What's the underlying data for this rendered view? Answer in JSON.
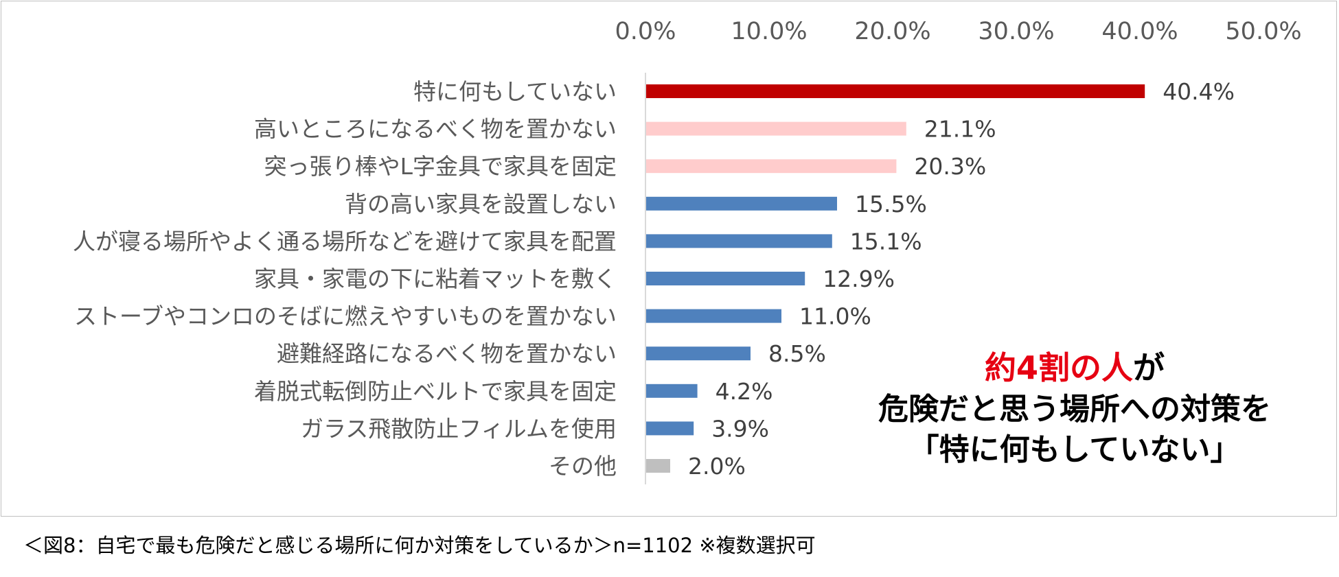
{
  "chart_data": {
    "type": "bar",
    "orientation": "horizontal",
    "xlim": [
      0,
      50
    ],
    "xticks": [
      "0.0%",
      "10.0%",
      "20.0%",
      "30.0%",
      "40.0%",
      "50.0%"
    ],
    "xtick_values": [
      0,
      10,
      20,
      30,
      40,
      50
    ],
    "grid": false,
    "categories": [
      "特に何もしていない",
      "高いところになるべく物を置かない",
      "突っ張り棒やL字金具で家具を固定",
      "背の高い家具を設置しない",
      "人が寝る場所やよく通る場所などを避けて家具を配置",
      "家具・家電の下に粘着マットを敷く",
      "ストーブやコンロのそばに燃えやすいものを置かない",
      "避難経路になるべく物を置かない",
      "着脱式転倒防止ベルトで家具を固定",
      "ガラス飛散防止フィルムを使用",
      "その他"
    ],
    "values": [
      40.4,
      21.1,
      20.3,
      15.5,
      15.1,
      12.9,
      11.0,
      8.5,
      4.2,
      3.9,
      2.0
    ],
    "value_labels": [
      "40.4%",
      "21.1%",
      "20.3%",
      "15.5%",
      "15.1%",
      "12.9%",
      "11.0%",
      "8.5%",
      "4.2%",
      "3.9%",
      "2.0%"
    ],
    "bar_colors": [
      "#c00000",
      "#ffcccc",
      "#ffcccc",
      "#4f81bd",
      "#4f81bd",
      "#4f81bd",
      "#4f81bd",
      "#4f81bd",
      "#4f81bd",
      "#4f81bd",
      "#bfbfbf"
    ]
  },
  "annotation": {
    "highlight": "約4割の人",
    "line1_rest": "が",
    "line2": "危険だと思う場所への対策を",
    "line3": "「特に何もしていない」"
  },
  "caption": "＜図8：自宅で最も危険だと感じる場所に何か対策をしているか＞n=1102 ※複数選択可"
}
